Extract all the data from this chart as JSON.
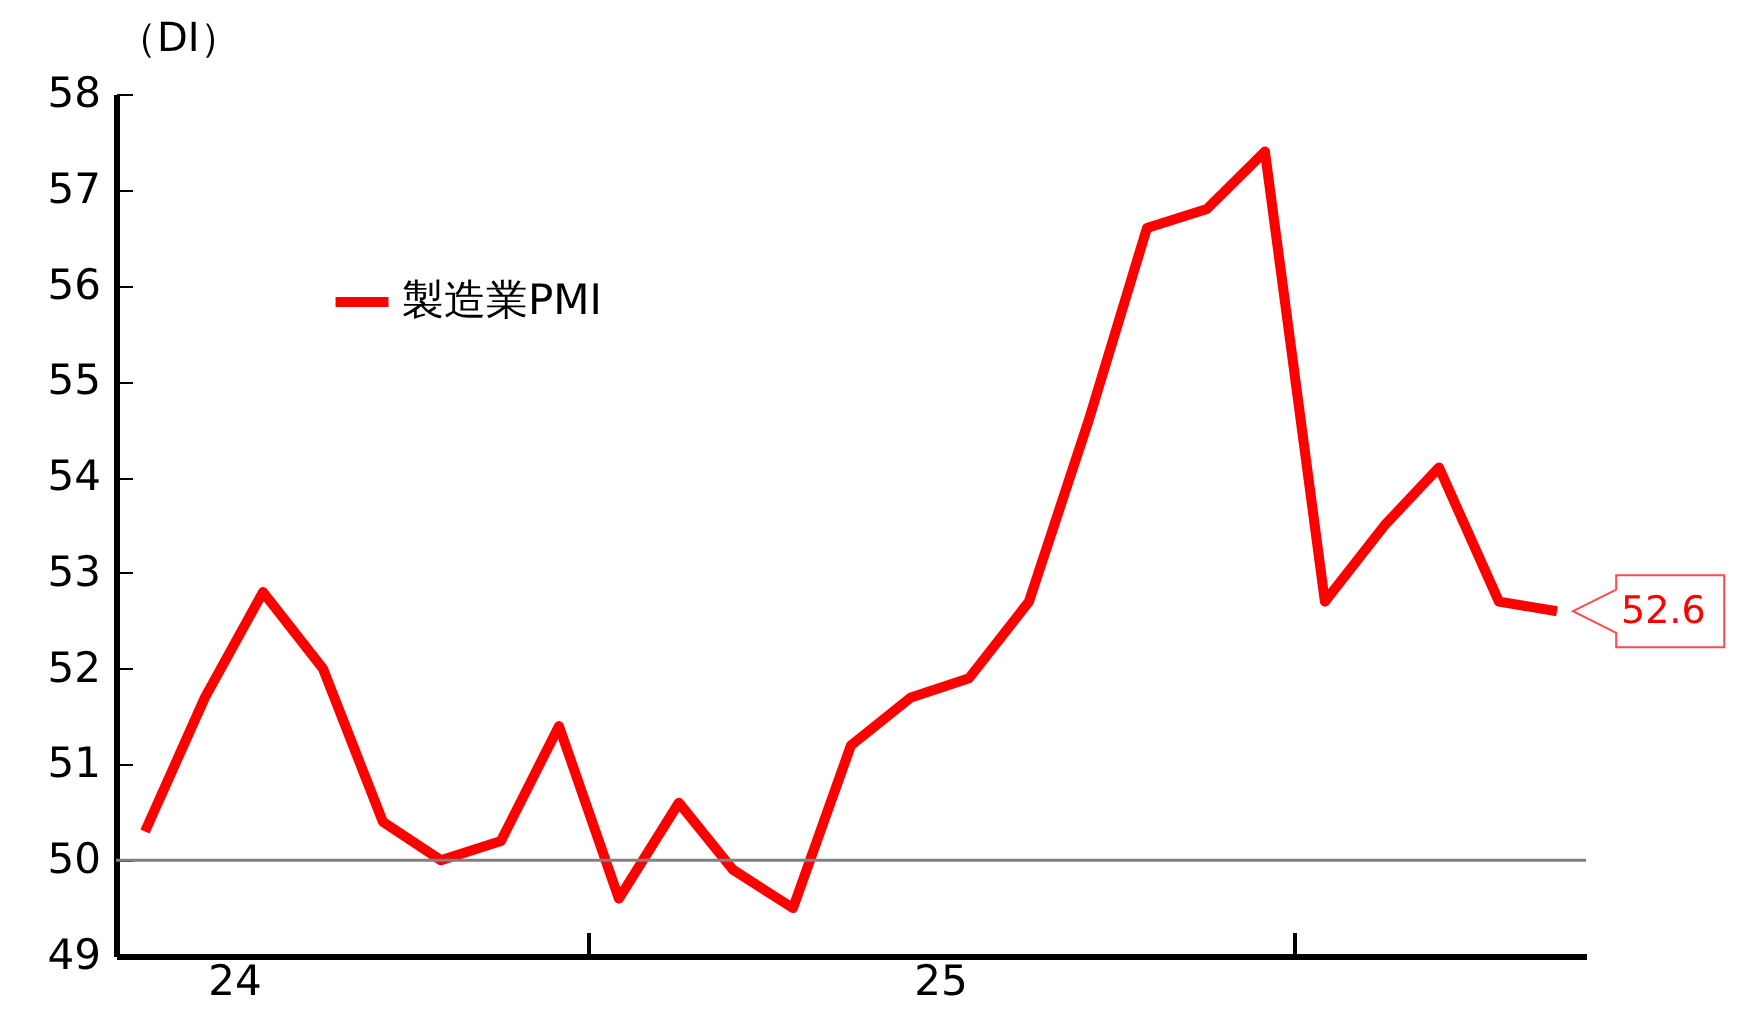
{
  "chart_data": {
    "type": "line",
    "ylabel": "（DI）",
    "x": [
      "2024-05",
      "2024-06",
      "2024-07",
      "2024-08",
      "2024-09",
      "2024-10",
      "2024-11",
      "2024-12",
      "2025-01",
      "2025-02",
      "2025-03",
      "2025-04",
      "2025-05",
      "2025-06",
      "2025-07",
      "2025-08",
      "2025-09",
      "2025-10",
      "2025-11",
      "2025-12",
      "2026-01",
      "2026-02",
      "2026-03",
      "2026-04",
      "2026-05"
    ],
    "series": [
      {
        "name": "製造業PMI",
        "color": "#ff0000",
        "values": [
          50.3,
          51.7,
          52.8,
          52.0,
          50.4,
          50.0,
          50.2,
          51.4,
          49.6,
          50.6,
          49.9,
          49.5,
          51.2,
          51.7,
          51.9,
          52.7,
          54.6,
          56.6,
          56.8,
          57.4,
          52.7,
          53.5,
          54.1,
          52.7,
          52.6
        ],
        "value_labels": [
          null,
          null,
          null,
          null,
          null,
          null,
          null,
          null,
          null,
          null,
          null,
          null,
          null,
          null,
          null,
          null,
          null,
          null,
          null,
          null,
          null,
          null,
          null,
          null,
          "52.6"
        ]
      }
    ],
    "xlim": [
      "2024-04-16",
      "2026-05-16"
    ],
    "xticks": [
      {
        "value": "2024-06-16",
        "label": "24"
      },
      {
        "value": "2024-12-16",
        "label": null
      },
      {
        "value": "2025-06-16",
        "label": "25"
      },
      {
        "value": "2025-12-16",
        "label": null
      }
    ],
    "ylim": [
      49,
      58
    ],
    "yticks": [
      49,
      50,
      51,
      52,
      53,
      54,
      55,
      56,
      57,
      58
    ],
    "ref_lines": [
      {
        "axis": "y",
        "value": 50,
        "color": "#808080"
      }
    ],
    "grid": false,
    "legend": "top left",
    "line_style": "solid",
    "marker": "none"
  }
}
